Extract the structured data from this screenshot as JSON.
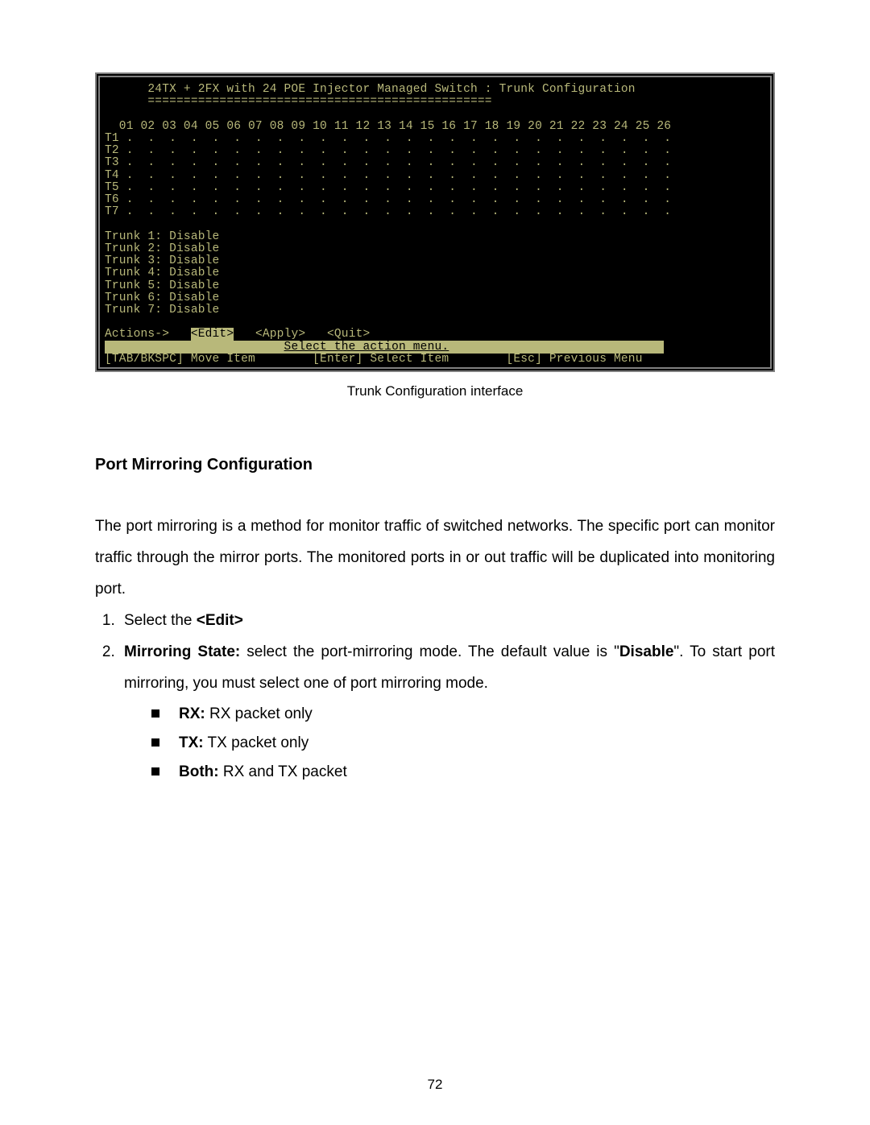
{
  "terminal": {
    "font_family": "Courier New",
    "bg_color": "#000000",
    "fg_color": "#b8b87a",
    "border_color": "#808080",
    "title_line": "      24TX + 2FX with 24 POE Injector Managed Switch : Trunk Configuration",
    "rule_line": "      ================================================",
    "header_cols": "  01 02 03 04 05 06 07 08 09 10 11 12 13 14 15 16 17 18 19 20 21 22 23 24 25 26",
    "rows": [
      "T1 .  .  .  .  .  .  .  .  .  .  .  .  .  .  .  .  .  .  .  .  .  .  .  .  .  .",
      "T2 .  .  .  .  .  .  .  .  .  .  .  .  .  .  .  .  .  .  .  .  .  .  .  .  .  .",
      "T3 .  .  .  .  .  .  .  .  .  .  .  .  .  .  .  .  .  .  .  .  .  .  .  .  .  .",
      "T4 .  .  .  .  .  .  .  .  .  .  .  .  .  .  .  .  .  .  .  .  .  .  .  .  .  .",
      "T5 .  .  .  .  .  .  .  .  .  .  .  .  .  .  .  .  .  .  .  .  .  .  .  .  .  .",
      "T6 .  .  .  .  .  .  .  .  .  .  .  .  .  .  .  .  .  .  .  .  .  .  .  .  .  .",
      "T7 .  .  .  .  .  .  .  .  .  .  .  .  .  .  .  .  .  .  .  .  .  .  .  .  .  ."
    ],
    "status_lines": [
      "Trunk 1: Disable",
      "Trunk 2: Disable",
      "Trunk 3: Disable",
      "Trunk 4: Disable",
      "Trunk 5: Disable",
      "Trunk 6: Disable",
      "Trunk 7: Disable"
    ],
    "actions_prefix": "Actions->   ",
    "actions_edit": "<Edit>",
    "actions_gap1": "   ",
    "actions_apply": "<Apply>",
    "actions_gap2": "   ",
    "actions_quit": "<Quit>",
    "hint_prefix": "                         ",
    "hint_text": "Select the action menu.",
    "hint_pad": "                              ",
    "footer_line": "[TAB/BKSPC] Move Item        [Enter] Select Item        [Esc] Previous Menu  "
  },
  "caption": "Trunk Configuration interface",
  "section_title": "Port Mirroring Configuration",
  "paragraph": "The port mirroring is a method for monitor traffic of switched networks. The specific port can monitor traffic through the mirror ports. The monitored ports in or out traffic will be duplicated into monitoring port.",
  "step1_prefix": "Select the ",
  "step1_bold": "<Edit>",
  "step2_label": "Mirroring State:",
  "step2_mid": " select the port-mirroring mode. The default value is \"",
  "step2_bold2": "Disable",
  "step2_end": "\". To start port mirroring, you must select one of port mirroring mode.",
  "bullets": {
    "rx_label": "RX:",
    "rx_text": " RX packet only",
    "tx_label": "TX:",
    "tx_text": " TX packet only",
    "both_label": "Both:",
    "both_text": " RX and TX packet"
  },
  "page_number": "72"
}
